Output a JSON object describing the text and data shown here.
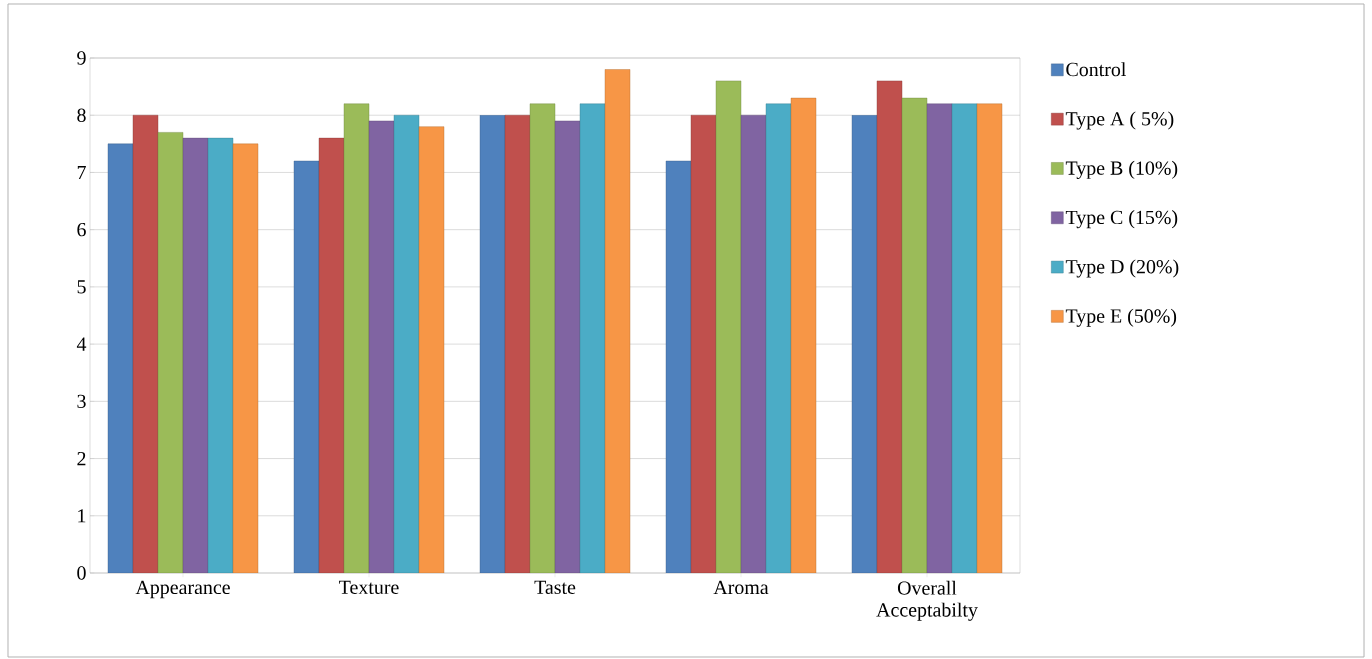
{
  "chart_data": {
    "type": "bar",
    "categories": [
      "Appearance",
      "Texture",
      "Taste",
      "Aroma",
      "Overall Acceptabilty"
    ],
    "series": [
      {
        "name": "Control",
        "color": "#4f81bd",
        "values": [
          7.5,
          7.2,
          8.0,
          7.2,
          8.0
        ]
      },
      {
        "name": "Type A ( 5%)",
        "color": "#c0504d",
        "values": [
          8.0,
          7.6,
          8.0,
          8.0,
          8.6
        ]
      },
      {
        "name": "Type B (10%)",
        "color": "#9bbb59",
        "values": [
          7.7,
          8.2,
          8.2,
          8.6,
          8.3
        ]
      },
      {
        "name": "Type C (15%)",
        "color": "#8064a2",
        "values": [
          7.6,
          7.9,
          7.9,
          8.0,
          8.2
        ]
      },
      {
        "name": "Type D (20%)",
        "color": "#4bacc6",
        "values": [
          7.6,
          8.0,
          8.2,
          8.2,
          8.2
        ]
      },
      {
        "name": "Type E (50%)",
        "color": "#f79646",
        "values": [
          7.5,
          7.8,
          8.8,
          8.3,
          8.2
        ]
      }
    ],
    "ylim": [
      0,
      9
    ],
    "yticks": [
      0,
      1,
      2,
      3,
      4,
      5,
      6,
      7,
      8,
      9
    ],
    "grid": "y",
    "legend": "right"
  }
}
